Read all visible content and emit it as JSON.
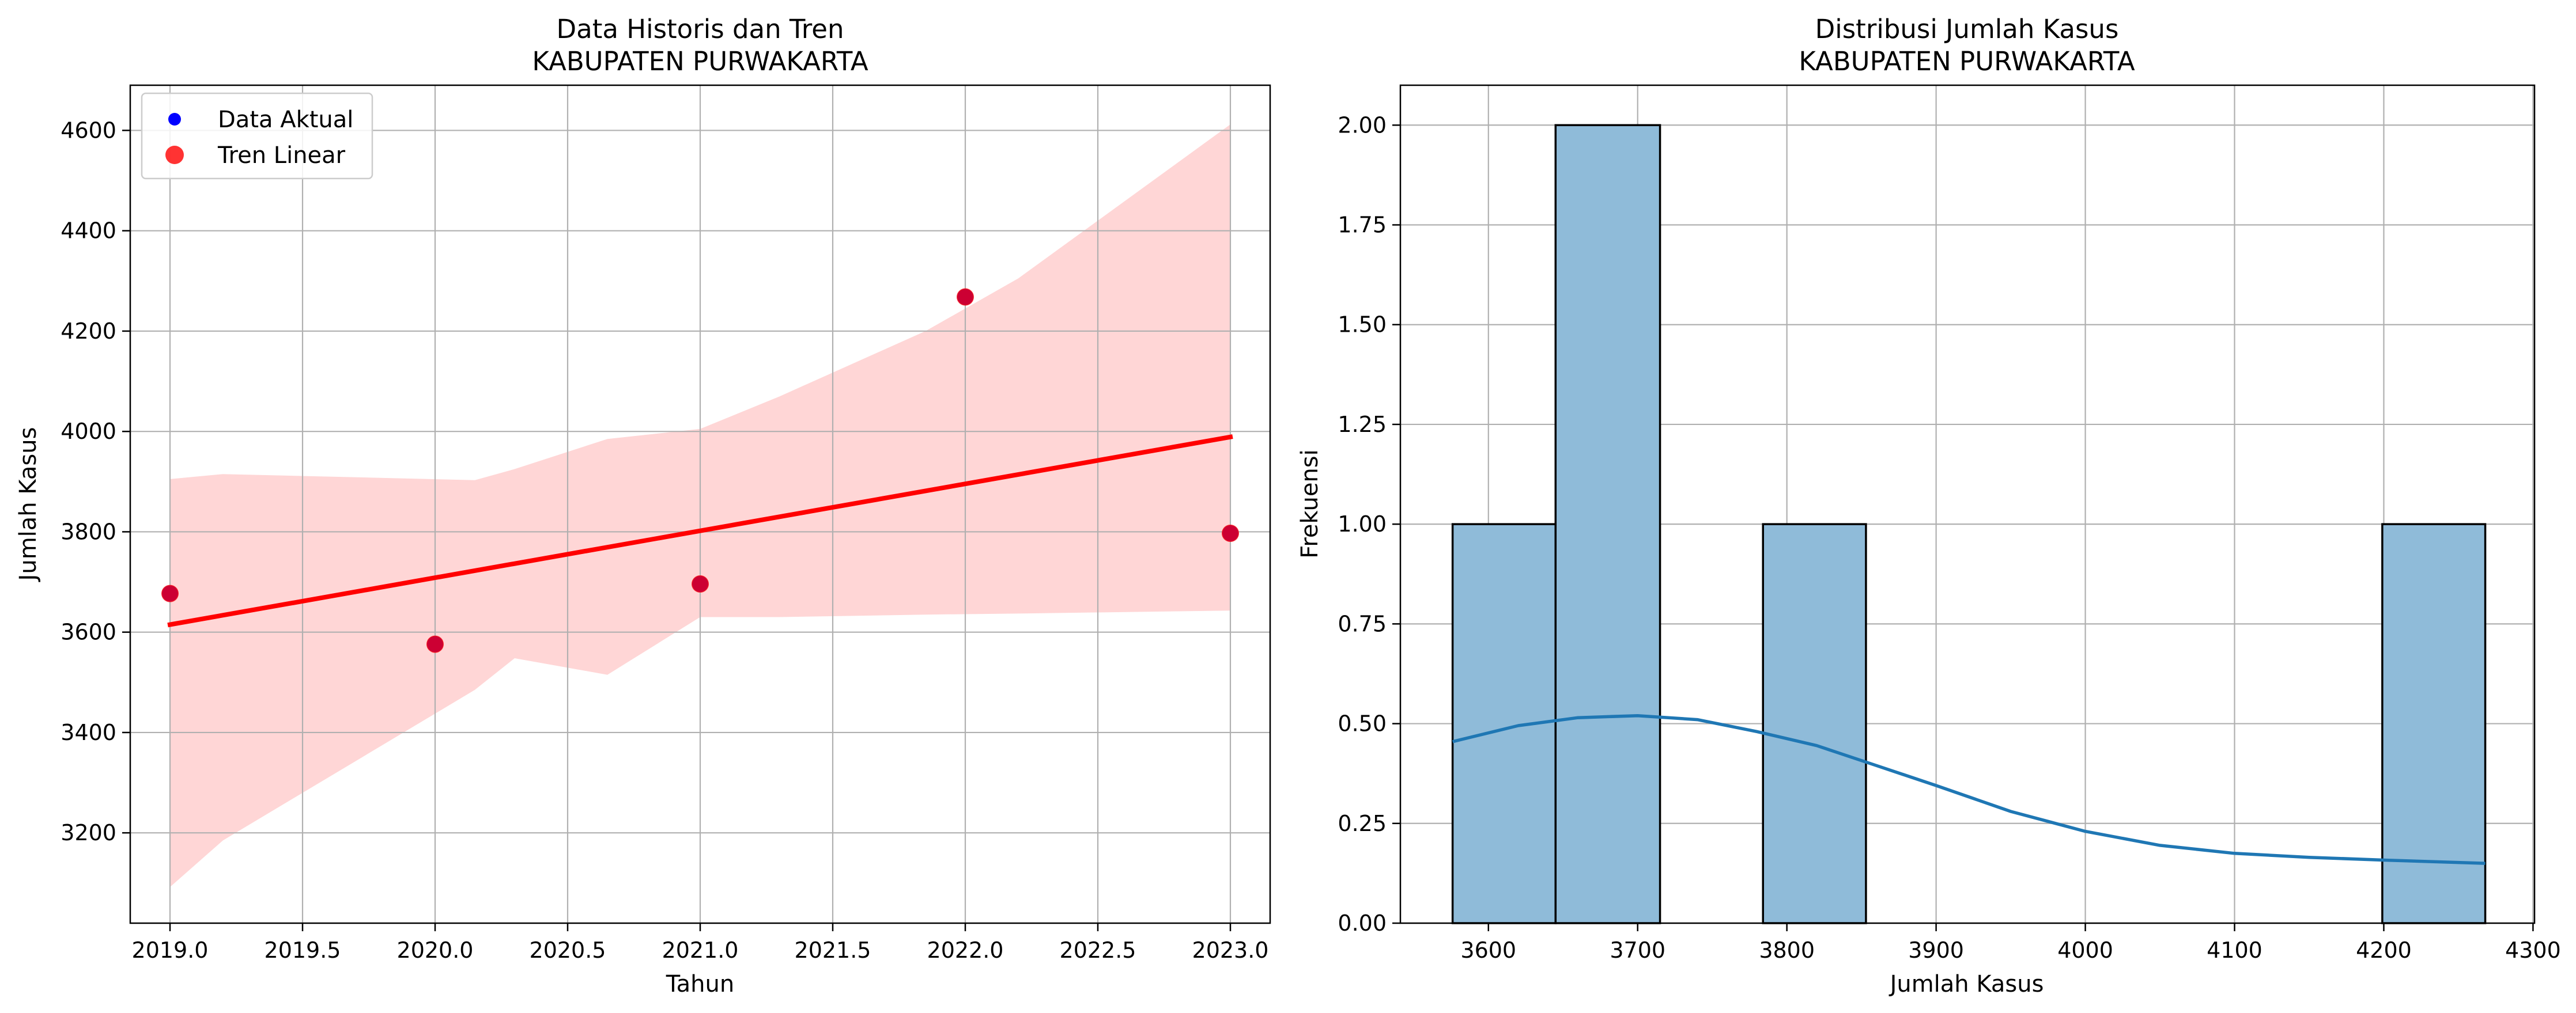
{
  "chart_data": [
    {
      "type": "scatter",
      "title": "Data Historis dan Tren",
      "subtitle": "KABUPATEN PURWAKARTA",
      "xlabel": "Tahun",
      "ylabel": "Jumlah Kasus",
      "xlim": [
        2018.85,
        2023.15
      ],
      "ylim": [
        3020,
        4690
      ],
      "xticks": [
        "2019.0",
        "2019.5",
        "2020.0",
        "2020.5",
        "2021.0",
        "2021.5",
        "2022.0",
        "2022.5",
        "2023.0"
      ],
      "yticks": [
        "3200",
        "3400",
        "3600",
        "3800",
        "4000",
        "4200",
        "4400",
        "4600"
      ],
      "grid": true,
      "legend": {
        "placement": "top-left",
        "entries": [
          "Data Aktual",
          "Tren Linear"
        ]
      },
      "series": [
        {
          "name": "Data Aktual",
          "color": "#0000ff",
          "x": [
            2019,
            2020,
            2021,
            2022,
            2023
          ],
          "y": [
            3677,
            3576,
            3696,
            4268,
            3797
          ]
        },
        {
          "name": "Tren Linear",
          "color": "#ff0000",
          "x": [
            2019,
            2023
          ],
          "y": [
            3615,
            3989
          ]
        }
      ],
      "confidence_band": {
        "color": "#ffd6d6",
        "x": [
          2019.0,
          2019.2,
          2020.15,
          2020.3,
          2020.65,
          2021.0,
          2021.3,
          2021.85,
          2022.2,
          2023.0
        ],
        "upper": [
          3905,
          3915,
          3903,
          3925,
          3985,
          4005,
          4070,
          4200,
          4305,
          4612
        ],
        "lower": [
          3092,
          3185,
          3485,
          3548,
          3515,
          3630,
          3630,
          3635,
          3637,
          3643
        ]
      }
    },
    {
      "type": "bar",
      "title": "Distribusi Jumlah Kasus",
      "subtitle": "KABUPATEN PURWAKARTA",
      "xlabel": "Jumlah Kasus",
      "ylabel": "Frekuensi",
      "xlim": [
        3541,
        4301
      ],
      "ylim": [
        0,
        2.1
      ],
      "xticks": [
        "3600",
        "3700",
        "3800",
        "3900",
        "4000",
        "4100",
        "4200",
        "4300"
      ],
      "yticks": [
        "0.00",
        "0.25",
        "0.50",
        "0.75",
        "1.00",
        "1.25",
        "1.50",
        "1.75",
        "2.00"
      ],
      "grid": true,
      "bar_color": "#8fbbd9",
      "bins": [
        {
          "x0": 3576,
          "x1": 3645,
          "count": 1
        },
        {
          "x0": 3645,
          "x1": 3715,
          "count": 2
        },
        {
          "x0": 3715,
          "x1": 3784,
          "count": 0
        },
        {
          "x0": 3784,
          "x1": 3853,
          "count": 1
        },
        {
          "x0": 3853,
          "x1": 3922,
          "count": 0
        },
        {
          "x0": 3922,
          "x1": 3991,
          "count": 0
        },
        {
          "x0": 3991,
          "x1": 4061,
          "count": 0
        },
        {
          "x0": 4061,
          "x1": 4130,
          "count": 0
        },
        {
          "x0": 4130,
          "x1": 4199,
          "count": 0
        },
        {
          "x0": 4199,
          "x1": 4268,
          "count": 1
        }
      ],
      "kde": {
        "color": "#1f77b4",
        "x": [
          3576,
          3620,
          3660,
          3700,
          3740,
          3780,
          3820,
          3860,
          3900,
          3950,
          4000,
          4050,
          4100,
          4150,
          4200,
          4268
        ],
        "y": [
          0.455,
          0.495,
          0.515,
          0.52,
          0.51,
          0.48,
          0.445,
          0.395,
          0.345,
          0.28,
          0.23,
          0.195,
          0.175,
          0.165,
          0.158,
          0.15
        ]
      }
    }
  ]
}
